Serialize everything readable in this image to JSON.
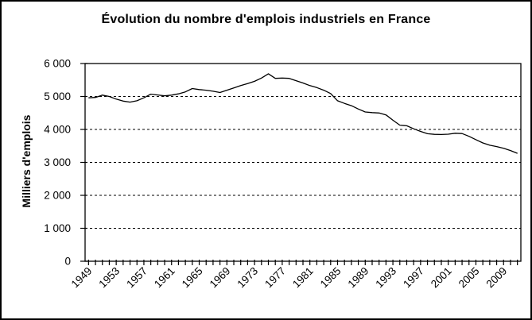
{
  "frame": {
    "background": "#ffffff",
    "border_color": "#000000"
  },
  "chart_data": {
    "type": "line",
    "title": "Évolution du nombre d'emplois industriels en France",
    "ylabel": "Milliers d'emplois",
    "xlabel": "",
    "ylim": [
      0,
      6000
    ],
    "y_tick_step": 1000,
    "y_tick_labels": [
      "0",
      "1 000",
      "2 000",
      "3 000",
      "4 000",
      "5 000",
      "6 000"
    ],
    "x_start_year": 1949,
    "x_end_year": 2011,
    "x_labeled_years": [
      "1949",
      "1953",
      "1957",
      "1961",
      "1965",
      "1969",
      "1973",
      "1977",
      "1981",
      "1985",
      "1989",
      "1993",
      "1997",
      "2001",
      "2005",
      "2009"
    ],
    "x_label_interval": 4,
    "grid": {
      "horizontal": "dashed",
      "vertical": "none"
    },
    "legend": "none",
    "line_color": "#000000",
    "values": [
      4960,
      4970,
      5040,
      5000,
      4920,
      4860,
      4830,
      4870,
      4960,
      5070,
      5045,
      5020,
      5040,
      5080,
      5140,
      5240,
      5210,
      5190,
      5160,
      5120,
      5190,
      5260,
      5330,
      5390,
      5460,
      5560,
      5690,
      5550,
      5560,
      5550,
      5480,
      5410,
      5330,
      5270,
      5190,
      5090,
      4870,
      4790,
      4720,
      4620,
      4530,
      4510,
      4500,
      4440,
      4280,
      4130,
      4110,
      4020,
      3940,
      3870,
      3850,
      3845,
      3855,
      3885,
      3875,
      3790,
      3690,
      3590,
      3520,
      3480,
      3430,
      3360,
      3275
    ]
  }
}
